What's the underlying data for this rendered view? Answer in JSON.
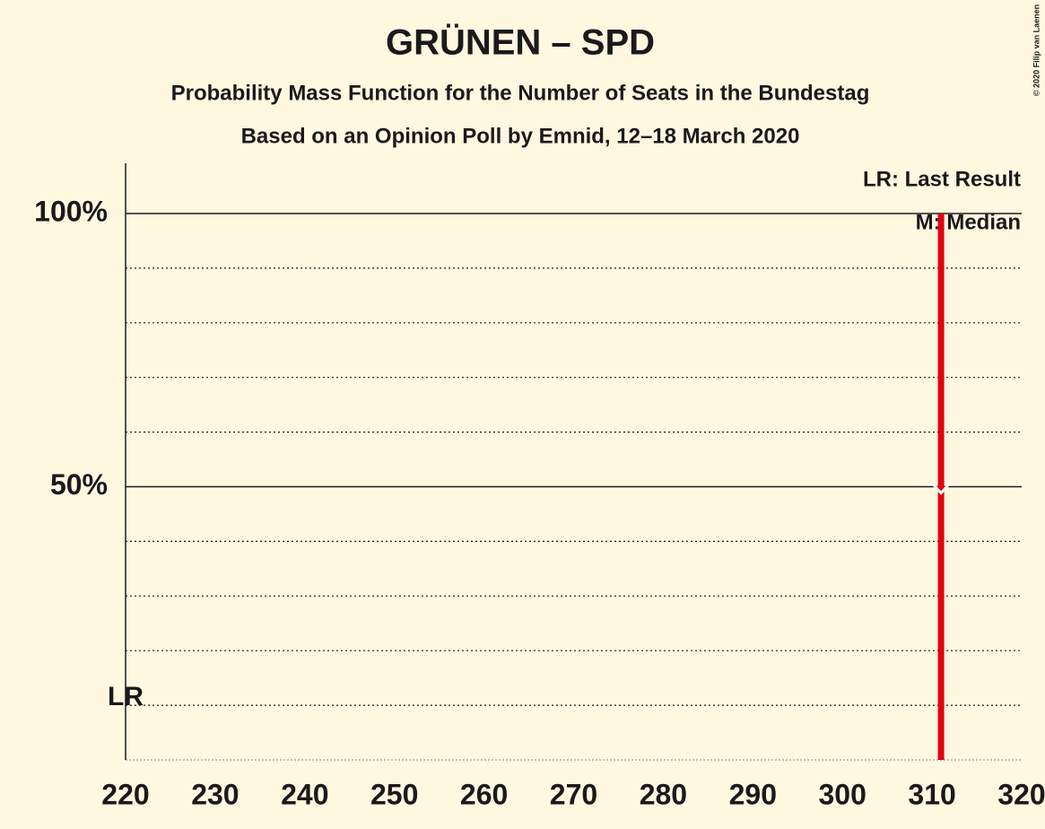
{
  "chart_data": {
    "type": "bar",
    "title": "GRÜNEN – SPD",
    "subtitle": "Probability Mass Function for the Number of Seats in the Bundestag",
    "subtitle2": "Based on an Opinion Poll by Emnid, 12–18 March 2020",
    "copyright": "© 2020 Filip van Laenen",
    "legend": [
      "LR: Last Result",
      "M: Median"
    ],
    "last_result_label": "LR",
    "last_result": 220,
    "median": 311,
    "x": [
      311
    ],
    "values": [
      100
    ],
    "color": "#e3000f",
    "xlim": [
      220,
      320
    ],
    "xticks": [
      220,
      230,
      240,
      250,
      260,
      270,
      280,
      290,
      300,
      310,
      320
    ],
    "ylim": [
      0,
      100
    ],
    "yticks": [
      {
        "value": 50,
        "label": "50%"
      },
      {
        "value": 100,
        "label": "100%"
      }
    ],
    "minor_yticks": [
      10,
      20,
      30,
      40,
      60,
      70,
      80,
      90
    ],
    "grid": true
  }
}
